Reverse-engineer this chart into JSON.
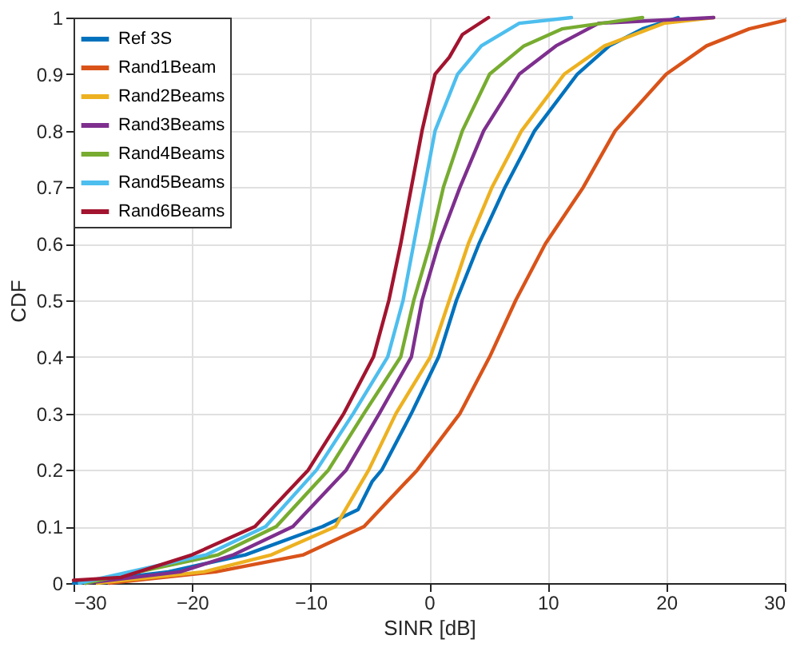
{
  "chart_data": {
    "type": "line",
    "xlabel": "SINR [dB]",
    "ylabel": "CDF",
    "xlim": [
      -30,
      30
    ],
    "xticks": [
      -30,
      -20,
      -10,
      0,
      10,
      20,
      30
    ],
    "ylim": [
      0,
      1
    ],
    "yticks": [
      0,
      0.1,
      0.2,
      0.3,
      0.4,
      0.5,
      0.6,
      0.7,
      0.8,
      0.9,
      1
    ],
    "grid": true,
    "legend": "top left",
    "marker": "none",
    "line_style": "solid",
    "series": [
      {
        "name": "Ref 3S",
        "color": "#0072bd",
        "x": [
          -30,
          -22,
          -15.5,
          -9,
          -6,
          -4.8,
          -4.0,
          -1.5,
          0.8,
          2.3,
          4.2,
          6.4,
          8.9,
          12.5,
          15.2,
          18,
          21
        ],
        "values": [
          0,
          0.02,
          0.05,
          0.1,
          0.13,
          0.18,
          0.2,
          0.3,
          0.4,
          0.5,
          0.6,
          0.7,
          0.8,
          0.9,
          0.95,
          0.98,
          1
        ]
      },
      {
        "name": "Rand1Beam",
        "color": "#d95319",
        "x": [
          -27,
          -18,
          -10.6,
          -5.5,
          -1,
          2.6,
          5.1,
          7.3,
          9.8,
          13,
          15.7,
          20,
          23.4,
          27,
          30
        ],
        "values": [
          0,
          0.02,
          0.05,
          0.1,
          0.2,
          0.3,
          0.4,
          0.5,
          0.6,
          0.7,
          0.8,
          0.9,
          0.95,
          0.98,
          0.995
        ]
      },
      {
        "name": "Rand2Beams",
        "color": "#edb120",
        "x": [
          -28,
          -19,
          -13.3,
          -7.9,
          -5.1,
          -2.8,
          0.1,
          1.7,
          3.3,
          5.3,
          7.8,
          11.4,
          14.8,
          19.8,
          24
        ],
        "values": [
          0,
          0.02,
          0.05,
          0.1,
          0.2,
          0.3,
          0.4,
          0.5,
          0.6,
          0.7,
          0.8,
          0.9,
          0.95,
          0.99,
          1
        ]
      },
      {
        "name": "Rand3Beams",
        "color": "#7e2f8e",
        "x": [
          -29,
          -21,
          -16.5,
          -11.5,
          -7,
          -4.2,
          -1.5,
          -0.6,
          0.8,
          2.6,
          4.6,
          7.6,
          10.7,
          14.3,
          24
        ],
        "values": [
          0,
          0.02,
          0.05,
          0.1,
          0.2,
          0.3,
          0.4,
          0.5,
          0.6,
          0.7,
          0.8,
          0.9,
          0.95,
          0.99,
          1
        ]
      },
      {
        "name": "Rand4Beams",
        "color": "#77ac30",
        "x": [
          -29,
          -17.8,
          -12.9,
          -8.5,
          -5.5,
          -2.4,
          -1.3,
          0.1,
          1.2,
          2.8,
          5.1,
          8,
          11.2,
          18
        ],
        "values": [
          0,
          0.05,
          0.1,
          0.2,
          0.3,
          0.4,
          0.5,
          0.6,
          0.7,
          0.8,
          0.9,
          0.95,
          0.98,
          1
        ]
      },
      {
        "name": "Rand5Beams",
        "color": "#4dbeee",
        "x": [
          -29.5,
          -18.8,
          -13.8,
          -9.5,
          -6.4,
          -3.5,
          -2.2,
          -1.3,
          -0.4,
          0.5,
          2.4,
          4.4,
          7.6,
          12
        ],
        "values": [
          0,
          0.05,
          0.1,
          0.2,
          0.3,
          0.4,
          0.5,
          0.6,
          0.7,
          0.8,
          0.9,
          0.95,
          0.99,
          1
        ]
      },
      {
        "name": "Rand6Beams",
        "color": "#a2142f",
        "x": [
          -30,
          -26,
          -20,
          -14.7,
          -10.2,
          -7.2,
          -4.7,
          -3.4,
          -2.4,
          -1.5,
          -0.6,
          0.5,
          1.7,
          2.8,
          5
        ],
        "values": [
          0.005,
          0.01,
          0.05,
          0.1,
          0.2,
          0.3,
          0.4,
          0.5,
          0.6,
          0.7,
          0.8,
          0.9,
          0.93,
          0.97,
          1
        ]
      }
    ]
  }
}
